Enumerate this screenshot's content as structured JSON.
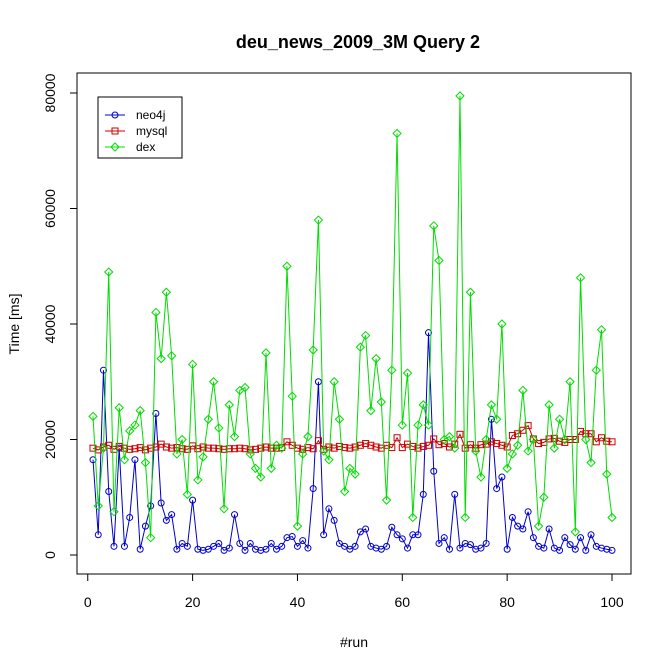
{
  "chart_data": {
    "type": "line",
    "title": "deu_news_2009_3M Query 2",
    "xlabel": "#run",
    "ylabel": "Time [ms]",
    "xlim": [
      0,
      100
    ],
    "ylim": [
      0,
      80000
    ],
    "x_ticks": [
      "0",
      "20",
      "40",
      "60",
      "80",
      "100"
    ],
    "y_ticks": [
      "0",
      "20000",
      "40000",
      "60000",
      "80000"
    ],
    "grid": false,
    "legend_position": "top-left",
    "x": [
      1,
      2,
      3,
      4,
      5,
      6,
      7,
      8,
      9,
      10,
      11,
      12,
      13,
      14,
      15,
      16,
      17,
      18,
      19,
      20,
      21,
      22,
      23,
      24,
      25,
      26,
      27,
      28,
      29,
      30,
      31,
      32,
      33,
      34,
      35,
      36,
      37,
      38,
      39,
      40,
      41,
      42,
      43,
      44,
      45,
      46,
      47,
      48,
      49,
      50,
      51,
      52,
      53,
      54,
      55,
      56,
      57,
      58,
      59,
      60,
      61,
      62,
      63,
      64,
      65,
      66,
      67,
      68,
      69,
      70,
      71,
      72,
      73,
      74,
      75,
      76,
      77,
      78,
      79,
      80,
      81,
      82,
      83,
      84,
      85,
      86,
      87,
      88,
      89,
      90,
      91,
      92,
      93,
      94,
      95,
      96,
      97,
      98,
      99,
      100
    ],
    "series": [
      {
        "name": "neo4j",
        "color": "#0000cc",
        "marker": "circle",
        "values": [
          16500,
          3500,
          32000,
          11000,
          1500,
          18500,
          1500,
          6500,
          16500,
          1000,
          5000,
          8500,
          24500,
          9000,
          6000,
          7000,
          1000,
          2000,
          1500,
          9500,
          1000,
          800,
          1000,
          1500,
          2000,
          800,
          1200,
          7000,
          2000,
          800,
          2000,
          1000,
          800,
          1000,
          2000,
          1000,
          1500,
          3000,
          3200,
          1500,
          2500,
          1200,
          11500,
          30000,
          3500,
          8000,
          6000,
          2000,
          1500,
          1000,
          1500,
          4000,
          4500,
          1500,
          1200,
          1000,
          1500,
          4800,
          3500,
          2800,
          1200,
          3500,
          3500,
          10500,
          38500,
          14500,
          2000,
          3000,
          1000,
          10500,
          1200,
          2000,
          1800,
          1000,
          1200,
          2000,
          23500,
          11500,
          13500,
          1000,
          6500,
          5000,
          4500,
          7500,
          3000,
          1500,
          1200,
          4500,
          1200,
          800,
          3000,
          1800,
          1000,
          3000,
          800,
          3500,
          1500,
          1200,
          1000,
          800
        ]
      },
      {
        "name": "mysql",
        "color": "#cc0000",
        "marker": "square",
        "values": [
          18500,
          18200,
          18700,
          19000,
          18300,
          18800,
          18500,
          18300,
          18400,
          18600,
          18200,
          18500,
          18700,
          19200,
          18700,
          18500,
          18600,
          18400,
          18300,
          18900,
          18400,
          18700,
          18500,
          18500,
          18400,
          18300,
          18400,
          18400,
          18500,
          18400,
          18200,
          18300,
          18500,
          18700,
          18500,
          18500,
          18600,
          19600,
          19000,
          18500,
          18300,
          18600,
          18400,
          19800,
          18300,
          18700,
          18500,
          18800,
          18600,
          18500,
          18700,
          19000,
          19300,
          19000,
          18700,
          18500,
          19000,
          18600,
          20300,
          18600,
          19200,
          18800,
          18500,
          18800,
          19000,
          20100,
          19100,
          19300,
          18700,
          19200,
          20900,
          18500,
          19100,
          18500,
          19100,
          19200,
          19600,
          19300,
          19000,
          18700,
          20700,
          21000,
          21600,
          22400,
          20100,
          19300,
          19500,
          20100,
          20200,
          19700,
          19500,
          20000,
          20000,
          21400,
          21000,
          21000,
          19600,
          20300,
          19700,
          19600
        ]
      },
      {
        "name": "dex",
        "color": "#00dd00",
        "marker": "diamond",
        "values": [
          24000,
          8500,
          18500,
          49000,
          7500,
          25500,
          16500,
          21500,
          22500,
          25000,
          16000,
          3000,
          42000,
          34000,
          45500,
          34500,
          17500,
          20000,
          10500,
          33000,
          13000,
          17000,
          23500,
          30000,
          22000,
          8000,
          26000,
          20500,
          28500,
          29000,
          17500,
          15000,
          13500,
          35000,
          15000,
          19000,
          18500,
          50000,
          27500,
          5000,
          17500,
          20500,
          35500,
          58000,
          18000,
          16500,
          30000,
          23500,
          11000,
          15000,
          14000,
          36000,
          38000,
          25000,
          34000,
          26500,
          9500,
          32000,
          73000,
          22500,
          31500,
          6500,
          22500,
          26000,
          22500,
          57000,
          51000,
          20000,
          20500,
          18500,
          79500,
          6500,
          45500,
          18000,
          13500,
          20000,
          26000,
          23500,
          40000,
          15000,
          17500,
          19000,
          28500,
          18000,
          20000,
          5000,
          10000,
          26000,
          18500,
          23500,
          20000,
          30000,
          4000,
          48000,
          20000,
          16000,
          32000,
          39000,
          14000,
          6500
        ]
      }
    ]
  }
}
